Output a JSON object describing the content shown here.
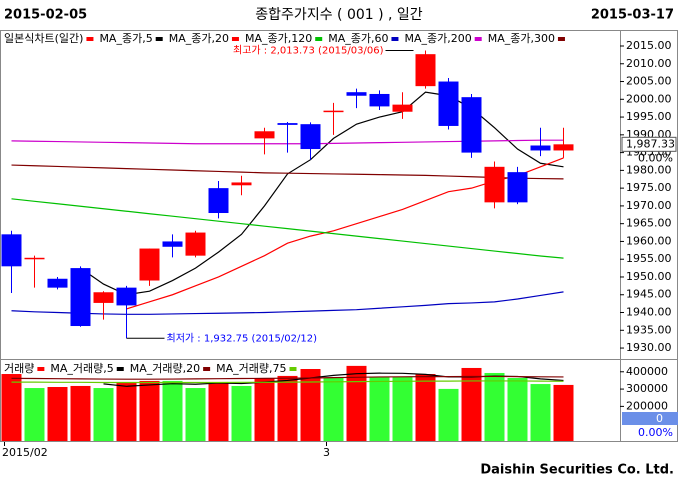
{
  "header": {
    "left": "2015-02-05",
    "title": "종합주가지수 ( 001 ) , 일간",
    "right": "2015-03-17"
  },
  "footer": "Daishin Securities Co. Ltd.",
  "chart_data": [
    {
      "type": "candlestick",
      "name": "일본식차트(일간)",
      "categories": [
        "2015/02",
        null,
        null,
        null,
        null,
        null,
        null,
        null,
        null,
        null,
        null,
        null,
        null,
        null,
        "3",
        null,
        null,
        null,
        null,
        null,
        null,
        null,
        null,
        null,
        null
      ],
      "open": [
        1962,
        1955,
        1949.5,
        1952.5,
        1942.7,
        1947,
        1949,
        1960,
        1956,
        1975,
        1975.8,
        1989,
        1993.3,
        1993,
        1996.4,
        2002,
        2001.5,
        1996.5,
        2003.7,
        2005,
        2000.6,
        1971,
        1979.5,
        1987,
        1985.6
      ],
      "high": [
        1963,
        1956,
        1950,
        1953,
        1946,
        1947.5,
        1958,
        1962,
        1963,
        1977,
        1978.5,
        1992,
        1993.6,
        1993.5,
        1999,
        2003,
        2002.5,
        2002,
        2013.73,
        2006,
        2001.5,
        1982.5,
        1981,
        1992,
        1992
      ],
      "low": [
        1945.5,
        1947,
        1946.5,
        1936,
        1938,
        1932.75,
        1947.5,
        1955.5,
        1955.5,
        1966.5,
        1973,
        1984.5,
        1985,
        1983,
        1990,
        1997.5,
        1997,
        1994.5,
        2003,
        1991.5,
        1983.5,
        1969.3,
        1970.5,
        1984,
        1983.5
      ],
      "close": [
        1953,
        1955.4,
        1947,
        1936.2,
        1945.7,
        1942,
        1958,
        1958.5,
        1962.5,
        1968,
        1976.6,
        1991,
        1992.8,
        1986,
        1996.8,
        2001,
        1998,
        1998.5,
        2012.7,
        1992.5,
        1985,
        1981,
        1971,
        1985.6,
        1987.33
      ],
      "up_color": "#ff0000",
      "down_color": "#0000ff",
      "lines": [
        {
          "name": "MA_종가,5",
          "color": "#000000",
          "values": [
            null,
            null,
            null,
            1952.5,
            1948,
            1945,
            1946,
            1949,
            1952.5,
            1957,
            1962,
            1970,
            1979,
            1983,
            1989,
            1993,
            1995,
            1996.5,
            2002,
            2001,
            1997.5,
            1992,
            1986,
            1982,
            1981
          ]
        },
        {
          "name": "MA_종가,20",
          "color": "#ff0000",
          "values": [
            null,
            null,
            null,
            null,
            null,
            1941,
            1943,
            1945,
            1947.5,
            1950,
            1953,
            1956,
            1959.5,
            1961.5,
            1963,
            1965,
            1967,
            1969,
            1971.5,
            1974,
            1975,
            1977,
            1978.5,
            1981,
            1983.5
          ]
        },
        {
          "name": "MA_종가,120",
          "color": "#00c000",
          "values": [
            1972,
            1971.3,
            1970.6,
            1969.9,
            1969.2,
            1968.5,
            1967.8,
            1967.1,
            1966.4,
            1965.7,
            1965,
            1964.3,
            1963.6,
            1962.9,
            1962.2,
            1961.5,
            1960.8,
            1960.1,
            1959.4,
            1958.7,
            1958,
            1957.3,
            1956.6,
            1955.9,
            1955.3
          ]
        },
        {
          "name": "MA_종가,60",
          "color": "#0000c0",
          "values": [
            1940.5,
            1940.2,
            1940,
            1939.8,
            1939.6,
            1939.5,
            1939.5,
            1939.6,
            1939.7,
            1939.8,
            1939.9,
            1940,
            1940.2,
            1940.4,
            1940.6,
            1940.8,
            1941.2,
            1941.6,
            1942,
            1942.5,
            1942.7,
            1943,
            1943.8,
            1944.8,
            1945.8
          ]
        },
        {
          "name": "MA_종가,200",
          "color": "#cc00cc",
          "values": [
            1988.3,
            1988.2,
            1988.1,
            1988,
            1987.9,
            1987.8,
            1987.7,
            1987.6,
            1987.5,
            1987.5,
            1987.5,
            1987.5,
            1987.5,
            1987.5,
            1987.6,
            1987.7,
            1987.8,
            1987.9,
            1988,
            1988.1,
            1988.2,
            1988.3,
            1988.4,
            1988.5,
            1988.5
          ]
        },
        {
          "name": "MA_종가,300",
          "color": "#800000",
          "values": [
            1981.5,
            1981.3,
            1981.1,
            1980.9,
            1980.7,
            1980.5,
            1980.3,
            1980.1,
            1979.9,
            1979.7,
            1979.5,
            1979.3,
            1979.2,
            1979.1,
            1979,
            1978.9,
            1978.8,
            1978.7,
            1978.6,
            1978.4,
            1978.2,
            1978,
            1977.8,
            1977.7,
            1977.6
          ]
        }
      ],
      "ylim": [
        1927.2,
        2019.5
      ],
      "yticks": [
        {
          "value": 1930,
          "label": "1930.00"
        },
        {
          "value": 1935,
          "label": "1935.00"
        },
        {
          "value": 1940,
          "label": "1940.00"
        },
        {
          "value": 1945,
          "label": "1945.00"
        },
        {
          "value": 1950,
          "label": "1950.00"
        },
        {
          "value": 1955,
          "label": "1955.00"
        },
        {
          "value": 1960,
          "label": "1960.00"
        },
        {
          "value": 1965,
          "label": "1965.00"
        },
        {
          "value": 1970,
          "label": "1970.00"
        },
        {
          "value": 1975,
          "label": "1975.00"
        },
        {
          "value": 1980,
          "label": "1980.00"
        },
        {
          "value": 1985,
          "label": "1985.00"
        },
        {
          "value": 1990,
          "label": "1990.00"
        },
        {
          "value": 1995,
          "label": "1995.00"
        },
        {
          "value": 2000,
          "label": "2000.00"
        },
        {
          "value": 2005,
          "label": "2005.00"
        },
        {
          "value": 2010,
          "label": "2010.00"
        },
        {
          "value": 2015,
          "label": "2015.00"
        }
      ],
      "last_value": {
        "value": 1987.33,
        "label": "1,987.33"
      },
      "change_label": "0.00%",
      "annotations": [
        {
          "text": "최고가 : 2,013.73 (2015/03/06)",
          "index": 18,
          "value": 2013.73,
          "color": "#ff0000",
          "side": "left"
        },
        {
          "text": "최저가 : 1,932.75 (2015/02/12)",
          "index": 5,
          "value": 1932.75,
          "color": "#0000ff",
          "side": "right"
        }
      ]
    },
    {
      "type": "bar",
      "name": "거래량",
      "color": "#ff0000",
      "values": [
        387000,
        306000,
        312000,
        318000,
        306000,
        335000,
        347000,
        347000,
        306000,
        341000,
        318000,
        364000,
        376000,
        416000,
        364000,
        434000,
        370000,
        370000,
        387000,
        301000,
        422000,
        393000,
        364000,
        329000,
        324000
      ],
      "colors": [
        "#ff0000",
        "#33ff33",
        "#ff0000",
        "#ff0000",
        "#33ff33",
        "#ff0000",
        "#ff0000",
        "#33ff33",
        "#33ff33",
        "#ff0000",
        "#33ff33",
        "#ff0000",
        "#ff0000",
        "#ff0000",
        "#33ff33",
        "#ff0000",
        "#33ff33",
        "#33ff33",
        "#ff0000",
        "#33ff33",
        "#ff0000",
        "#33ff33",
        "#33ff33",
        "#33ff33",
        "#ff0000"
      ],
      "lines": [
        {
          "name": "MA_거래량,5",
          "color": "#000000",
          "values": [
            null,
            null,
            null,
            null,
            330000,
            316000,
            324000,
            331000,
            328000,
            335000,
            332000,
            340000,
            350000,
            364000,
            379000,
            389000,
            392000,
            391000,
            385000,
            370000,
            370000,
            375000,
            373000,
            359000,
            350000
          ]
        },
        {
          "name": "MA_거래량,20",
          "color": "#800000",
          "values": [
            362000,
            361000,
            360000,
            359000,
            358000,
            357000,
            357000,
            358000,
            359000,
            360000,
            361000,
            362000,
            363000,
            364000,
            366000,
            368000,
            370000,
            371000,
            372000,
            372000,
            373000,
            373000,
            372000,
            371000,
            370000
          ]
        },
        {
          "name": "MA_거래량,75",
          "color": "#66cc00",
          "values": [
            340000,
            340000,
            339000,
            339000,
            338000,
            338000,
            338000,
            338000,
            338000,
            338000,
            339000,
            339000,
            340000,
            341000,
            342000,
            343000,
            344000,
            345000,
            346000,
            346000,
            347000,
            347000,
            347000,
            346000,
            345000
          ]
        }
      ],
      "ylim": [
        0,
        468000
      ],
      "yticks": [
        200000,
        300000,
        400000
      ],
      "last_value": 0,
      "change_label": "0.00%"
    }
  ]
}
